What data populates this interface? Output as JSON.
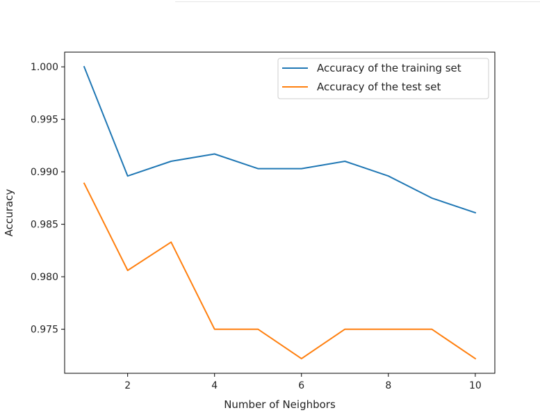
{
  "chart_data": {
    "type": "line",
    "title": "",
    "xlabel": "Number of Neighbors",
    "ylabel": "Accuracy",
    "x": [
      1,
      2,
      3,
      4,
      5,
      6,
      7,
      8,
      9,
      10
    ],
    "series": [
      {
        "name": "Accuracy of the training set",
        "color": "#1f77b4",
        "values": [
          1.0,
          0.9896,
          0.991,
          0.9917,
          0.9903,
          0.9903,
          0.991,
          0.9896,
          0.9875,
          0.9861
        ]
      },
      {
        "name": "Accuracy of the test set",
        "color": "#ff7f0e",
        "values": [
          0.9889,
          0.9806,
          0.9833,
          0.975,
          0.975,
          0.9722,
          0.975,
          0.975,
          0.975,
          0.9722
        ]
      }
    ],
    "xlim": [
      0.55,
      10.45
    ],
    "ylim": [
      0.9708,
      1.0014
    ],
    "xticks": [
      2,
      4,
      6,
      8,
      10
    ],
    "xtick_labels": [
      "2",
      "4",
      "6",
      "8",
      "10"
    ],
    "yticks": [
      0.975,
      0.98,
      0.985,
      0.99,
      0.995,
      1.0
    ],
    "ytick_labels": [
      "0.975",
      "0.980",
      "0.985",
      "0.990",
      "0.995",
      "1.000"
    ],
    "grid": false,
    "legend_position": "top-right"
  }
}
